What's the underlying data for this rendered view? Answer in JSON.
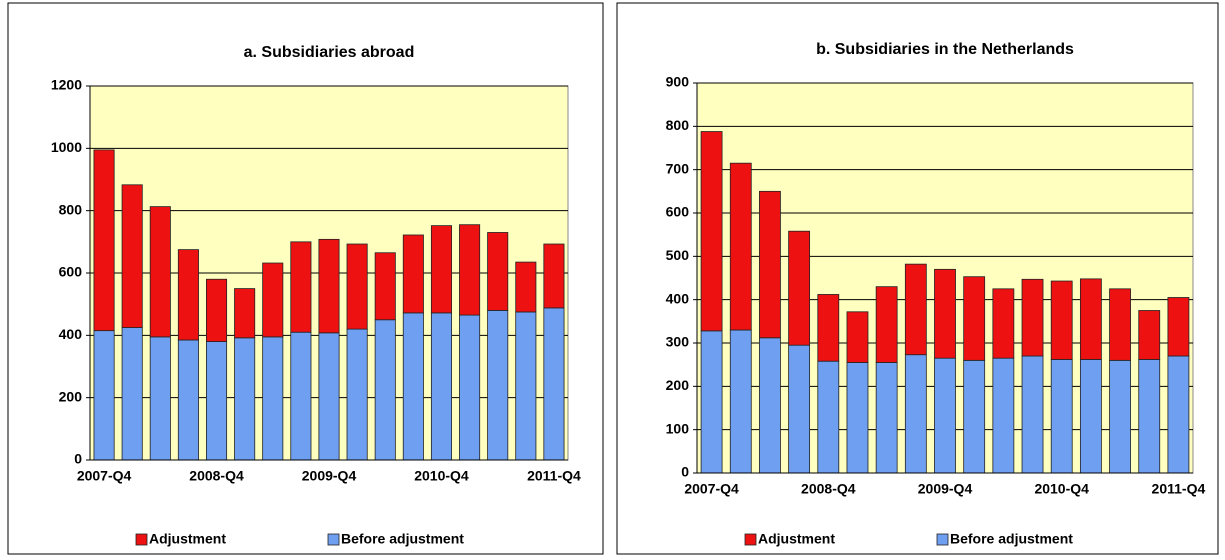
{
  "chart_data": [
    {
      "type": "stacked_bar",
      "title": "a.  Subsidiaries abroad",
      "categories": [
        "2007-Q4",
        null,
        null,
        null,
        "2008-Q4",
        null,
        null,
        null,
        "2009-Q4",
        null,
        null,
        null,
        "2010-Q4",
        null,
        null,
        null,
        "2011-Q4"
      ],
      "series": [
        {
          "name": "Adjustment",
          "color": "#ee1111",
          "values": [
            580,
            458,
            418,
            290,
            200,
            158,
            237,
            290,
            300,
            273,
            215,
            250,
            280,
            290,
            250,
            160,
            205
          ]
        },
        {
          "name": "Before adjustment",
          "color": "#6f9ff0",
          "values": [
            415,
            425,
            395,
            385,
            380,
            392,
            395,
            410,
            408,
            420,
            450,
            472,
            472,
            465,
            480,
            475,
            488
          ]
        }
      ],
      "ylim": [
        0,
        1200
      ],
      "yticks": [
        0,
        200,
        400,
        600,
        800,
        1000,
        1200
      ],
      "grid": true,
      "legend": "bottom"
    },
    {
      "type": "stacked_bar",
      "title": "b. Subsidiaries in the Netherlands",
      "categories": [
        "2007-Q4",
        null,
        null,
        null,
        "2008-Q4",
        null,
        null,
        null,
        "2009-Q4",
        null,
        null,
        null,
        "2010-Q4",
        null,
        null,
        null,
        "2011-Q4"
      ],
      "series": [
        {
          "name": "Adjustment",
          "color": "#ee1111",
          "values": [
            460,
            385,
            338,
            263,
            154,
            117,
            175,
            209,
            205,
            193,
            160,
            177,
            181,
            186,
            165,
            113,
            135
          ]
        },
        {
          "name": "Before adjustment",
          "color": "#6f9ff0",
          "values": [
            328,
            330,
            312,
            295,
            258,
            255,
            255,
            273,
            265,
            260,
            265,
            270,
            262,
            262,
            260,
            262,
            270
          ]
        }
      ],
      "ylim": [
        0,
        900
      ],
      "yticks": [
        0,
        100,
        200,
        300,
        400,
        500,
        600,
        700,
        800,
        900
      ],
      "grid": true,
      "legend": "bottom"
    }
  ]
}
